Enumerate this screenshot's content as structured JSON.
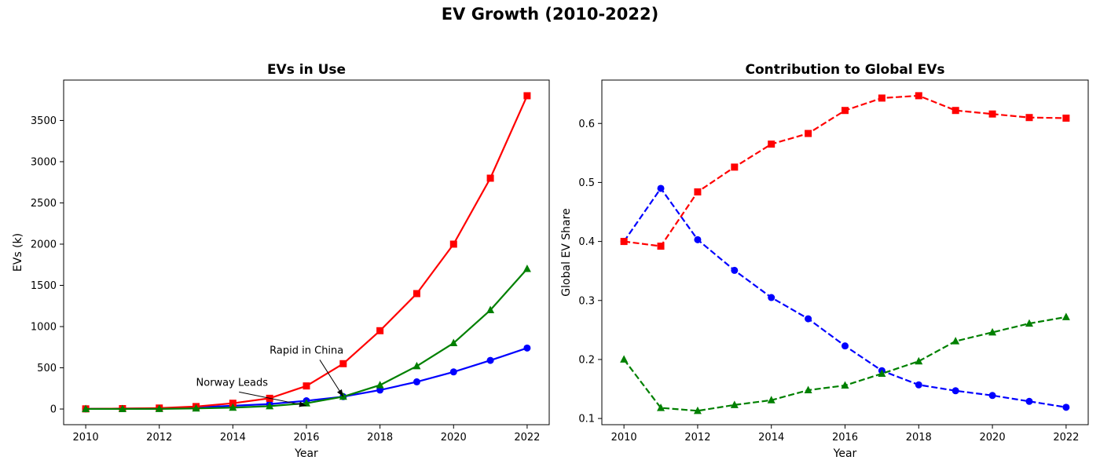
{
  "figure_title": "EV Growth (2010-2022)",
  "colors": {
    "series_a": "#0000ff",
    "series_b": "#ff0000",
    "series_c": "#008000"
  },
  "chart_data": [
    {
      "type": "line",
      "title": "EVs in Use",
      "xlabel": "Year",
      "ylabel": "EVs (k)",
      "x": [
        2010,
        2011,
        2012,
        2013,
        2014,
        2015,
        2016,
        2017,
        2018,
        2019,
        2020,
        2021,
        2022
      ],
      "xlim": [
        2009.4,
        2022.6
      ],
      "ylim": [
        -190,
        3990
      ],
      "xticks": [
        2010,
        2012,
        2014,
        2016,
        2018,
        2020,
        2022
      ],
      "yticks": [
        0,
        500,
        1000,
        1500,
        2000,
        2500,
        3000,
        3500
      ],
      "line_style": "solid",
      "series": [
        {
          "color": "#0000ff",
          "marker": "circle",
          "values": [
            2,
            5,
            8,
            20,
            40,
            60,
            100,
            150,
            230,
            330,
            450,
            590,
            740
          ]
        },
        {
          "color": "#ff0000",
          "marker": "square",
          "values": [
            2,
            5,
            12,
            30,
            70,
            130,
            280,
            550,
            950,
            1400,
            2000,
            2800,
            3800
          ]
        },
        {
          "color": "#008000",
          "marker": "triangle",
          "values": [
            1,
            1,
            2,
            7,
            17,
            35,
            70,
            150,
            290,
            520,
            800,
            1200,
            1700
          ]
        }
      ],
      "annotations": [
        {
          "text": "Norway Leads",
          "text_x": 2013,
          "text_y": 330,
          "point_x": 2016,
          "point_y": 40
        },
        {
          "text": "Rapid in China",
          "text_x": 2015,
          "text_y": 720,
          "point_x": 2017,
          "point_y": 150
        }
      ]
    },
    {
      "type": "line",
      "title": "Contribution to Global EVs",
      "xlabel": "Year",
      "ylabel": "Global EV Share",
      "x": [
        2010,
        2011,
        2012,
        2013,
        2014,
        2015,
        2016,
        2017,
        2018,
        2019,
        2020,
        2021,
        2022
      ],
      "xlim": [
        2009.4,
        2022.6
      ],
      "ylim": [
        0.0895,
        0.6735
      ],
      "xticks": [
        2010,
        2012,
        2014,
        2016,
        2018,
        2020,
        2022
      ],
      "yticks": [
        0.1,
        0.2,
        0.3,
        0.4,
        0.5,
        0.6
      ],
      "ytick_labels": [
        "0.1",
        "0.2",
        "0.3",
        "0.4",
        "0.5",
        "0.6"
      ],
      "line_style": "dashed",
      "series": [
        {
          "color": "#0000ff",
          "marker": "circle",
          "values": [
            0.4,
            0.49,
            0.403,
            0.351,
            0.305,
            0.269,
            0.223,
            0.181,
            0.157,
            0.147,
            0.139,
            0.129,
            0.119
          ]
        },
        {
          "color": "#ff0000",
          "marker": "square",
          "values": [
            0.4,
            0.392,
            0.484,
            0.526,
            0.565,
            0.583,
            0.622,
            0.643,
            0.647,
            0.622,
            0.616,
            0.61,
            0.609
          ]
        },
        {
          "color": "#008000",
          "marker": "triangle",
          "values": [
            0.2,
            0.118,
            0.113,
            0.123,
            0.131,
            0.148,
            0.156,
            0.176,
            0.197,
            0.231,
            0.246,
            0.261,
            0.272
          ]
        }
      ]
    }
  ]
}
